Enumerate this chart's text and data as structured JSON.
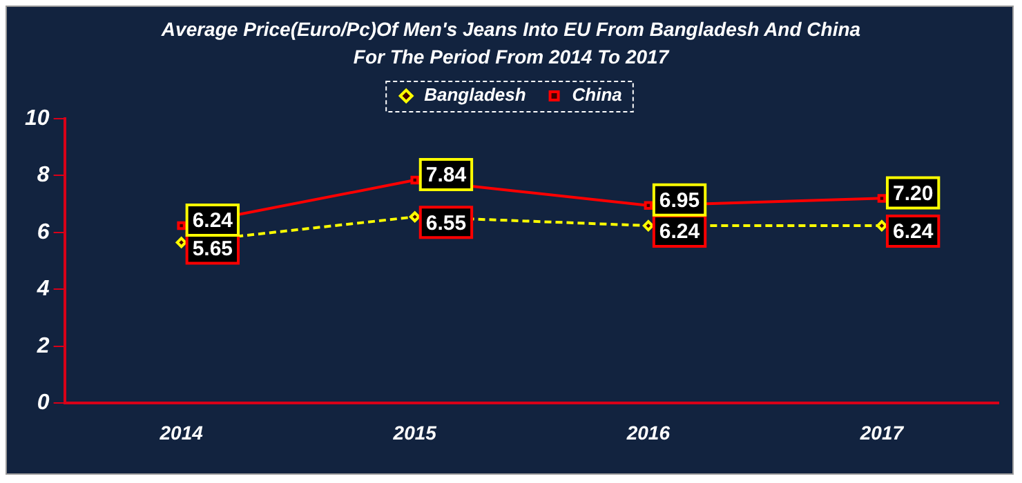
{
  "chart_data": {
    "type": "line",
    "title": "Average Price(Euro/Pc)Of Men's Jeans Into EU From Bangladesh And China For The Period From 2014 To 2017",
    "categories": [
      "2014",
      "2015",
      "2016",
      "2017"
    ],
    "series": [
      {
        "name": "Bangladesh",
        "color": "#ffff00",
        "values": [
          5.65,
          6.55,
          6.24,
          6.24
        ],
        "value_labels": [
          "5.65",
          "6.55",
          "6.24",
          "6.24"
        ],
        "line_style": "dashed",
        "marker": "diamond"
      },
      {
        "name": "China",
        "color": "#ff0000",
        "values": [
          6.24,
          7.84,
          6.95,
          7.2
        ],
        "value_labels": [
          "6.24",
          "7.84",
          "6.95",
          "7.20"
        ],
        "line_style": "solid",
        "marker": "square"
      }
    ],
    "ylim": [
      0,
      10
    ],
    "yticks": [
      0,
      2,
      4,
      6,
      8,
      10
    ],
    "grid": false,
    "legend": "top"
  }
}
